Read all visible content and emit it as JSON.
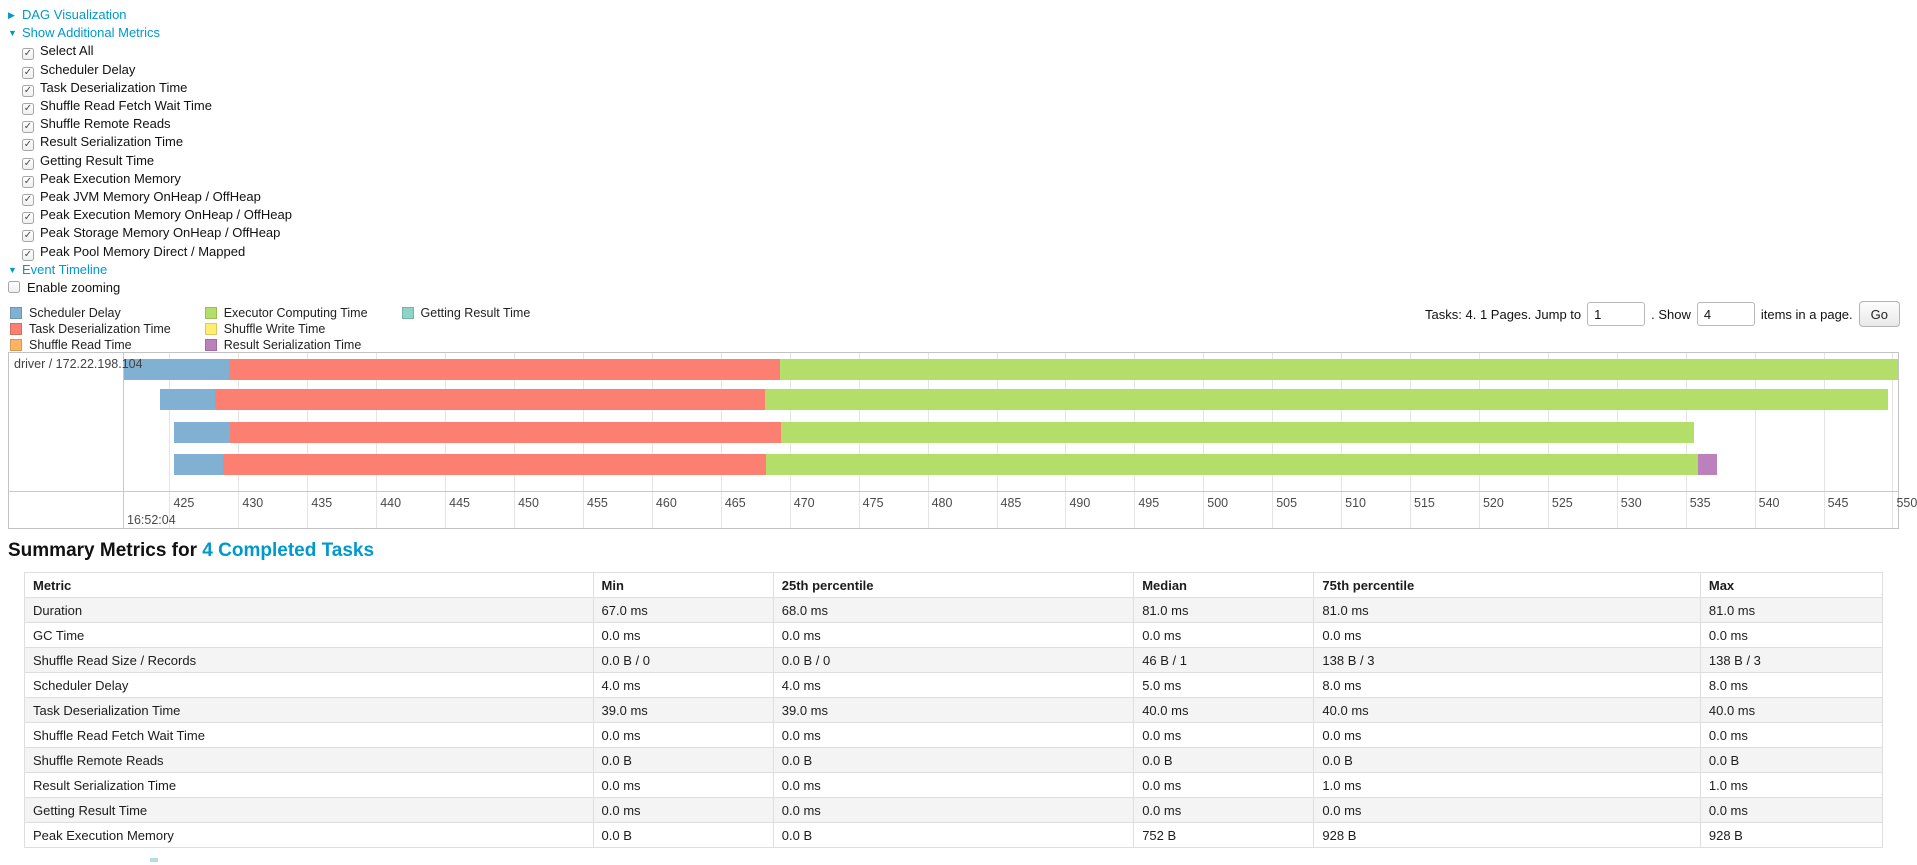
{
  "colors": {
    "link": "#0099cc",
    "scheduler_delay": "#80B1D3",
    "task_deserialization": "#FB8072",
    "shuffle_read": "#FDB462",
    "executor_computing": "#B3DE69",
    "shuffle_write": "#FFED6F",
    "result_serialization": "#BC80BD",
    "getting_result": "#8DD3C7"
  },
  "controls": {
    "dag": {
      "arrow": "▶",
      "label": "DAG Visualization"
    },
    "metrics": {
      "arrow": "▼",
      "label": "Show Additional Metrics"
    },
    "checkboxes": [
      "Select All",
      "Scheduler Delay",
      "Task Deserialization Time",
      "Shuffle Read Fetch Wait Time",
      "Shuffle Remote Reads",
      "Result Serialization Time",
      "Getting Result Time",
      "Peak Execution Memory",
      "Peak JVM Memory OnHeap / OffHeap",
      "Peak Execution Memory OnHeap / OffHeap",
      "Peak Storage Memory OnHeap / OffHeap",
      "Peak Pool Memory Direct / Mapped"
    ],
    "event_timeline": {
      "arrow": "▼",
      "label": "Event Timeline"
    },
    "enable_zooming": "Enable zooming"
  },
  "legend": {
    "columns": [
      [
        {
          "label": "Scheduler Delay",
          "color": "#80B1D3"
        },
        {
          "label": "Task Deserialization Time",
          "color": "#FB8072"
        },
        {
          "label": "Shuffle Read Time",
          "color": "#FDB462"
        }
      ],
      [
        {
          "label": "Executor Computing Time",
          "color": "#B3DE69"
        },
        {
          "label": "Shuffle Write Time",
          "color": "#FFED6F"
        },
        {
          "label": "Result Serialization Time",
          "color": "#BC80BD"
        }
      ],
      [
        {
          "label": "Getting Result Time",
          "color": "#8DD3C7"
        }
      ]
    ]
  },
  "pagination": {
    "prefix": "Tasks: 4. 1 Pages. Jump to",
    "jump_value": "1",
    "mid": ". Show",
    "show_value": "4",
    "suffix": "items in a page.",
    "go": "Go"
  },
  "chart_data": {
    "type": "timeline",
    "row_label": "driver / 172.22.198.104",
    "x_domain": [
      421.7,
      550.4
    ],
    "x_unit": "milliseconds within second",
    "ticks": [
      425,
      430,
      435,
      440,
      445,
      450,
      455,
      460,
      465,
      470,
      475,
      480,
      485,
      490,
      495,
      500,
      505,
      510,
      515,
      520,
      525,
      530,
      535,
      540,
      545,
      550
    ],
    "major_label": "16:52:04",
    "tasks": [
      {
        "segments": [
          {
            "name": "scheduler-delay",
            "start": 421.7,
            "end": 429.3,
            "color": "#80B1D3"
          },
          {
            "name": "task-deserialization",
            "start": 429.3,
            "end": 469.3,
            "color": "#FB8072"
          },
          {
            "name": "executor-computing",
            "start": 469.3,
            "end": 550.5,
            "color": "#B3DE69"
          }
        ]
      },
      {
        "segments": [
          {
            "name": "scheduler-delay",
            "start": 424.3,
            "end": 428.3,
            "color": "#80B1D3"
          },
          {
            "name": "task-deserialization",
            "start": 428.3,
            "end": 468.2,
            "color": "#FB8072"
          },
          {
            "name": "executor-computing",
            "start": 468.2,
            "end": 549.7,
            "color": "#B3DE69"
          }
        ]
      },
      {
        "segments": [
          {
            "name": "scheduler-delay",
            "start": 425.3,
            "end": 429.4,
            "color": "#80B1D3"
          },
          {
            "name": "task-deserialization",
            "start": 429.4,
            "end": 469.4,
            "color": "#FB8072"
          },
          {
            "name": "executor-computing",
            "start": 469.4,
            "end": 535.6,
            "color": "#B3DE69"
          }
        ]
      },
      {
        "segments": [
          {
            "name": "scheduler-delay",
            "start": 425.3,
            "end": 428.9,
            "color": "#80B1D3"
          },
          {
            "name": "task-deserialization",
            "start": 428.9,
            "end": 468.3,
            "color": "#FB8072"
          },
          {
            "name": "executor-computing",
            "start": 468.3,
            "end": 535.9,
            "color": "#B3DE69"
          },
          {
            "name": "result-serialization",
            "start": 535.9,
            "end": 537.3,
            "color": "#BC80BD"
          }
        ]
      }
    ]
  },
  "summary": {
    "title_prefix": "Summary Metrics for",
    "title_link": "4 Completed Tasks",
    "table": {
      "headers": [
        "Metric",
        "Min",
        "25th percentile",
        "Median",
        "75th percentile",
        "Max"
      ],
      "col_widths_pct": [
        30.6,
        9.7,
        19.4,
        9.7,
        20.8,
        9.8
      ],
      "rows": [
        [
          "Duration",
          "67.0 ms",
          "68.0 ms",
          "81.0 ms",
          "81.0 ms",
          "81.0 ms"
        ],
        [
          "GC Time",
          "0.0 ms",
          "0.0 ms",
          "0.0 ms",
          "0.0 ms",
          "0.0 ms"
        ],
        [
          "Shuffle Read Size / Records",
          "0.0 B / 0",
          "0.0 B / 0",
          "46 B / 1",
          "138 B / 3",
          "138 B / 3"
        ],
        [
          "Scheduler Delay",
          "4.0 ms",
          "4.0 ms",
          "5.0 ms",
          "8.0 ms",
          "8.0 ms"
        ],
        [
          "Task Deserialization Time",
          "39.0 ms",
          "39.0 ms",
          "40.0 ms",
          "40.0 ms",
          "40.0 ms"
        ],
        [
          "Shuffle Read Fetch Wait Time",
          "0.0 ms",
          "0.0 ms",
          "0.0 ms",
          "0.0 ms",
          "0.0 ms"
        ],
        [
          "Shuffle Remote Reads",
          "0.0 B",
          "0.0 B",
          "0.0 B",
          "0.0 B",
          "0.0 B"
        ],
        [
          "Result Serialization Time",
          "0.0 ms",
          "0.0 ms",
          "0.0 ms",
          "1.0 ms",
          "1.0 ms"
        ],
        [
          "Getting Result Time",
          "0.0 ms",
          "0.0 ms",
          "0.0 ms",
          "0.0 ms",
          "0.0 ms"
        ],
        [
          "Peak Execution Memory",
          "0.0 B",
          "0.0 B",
          "752 B",
          "928 B",
          "928 B"
        ]
      ]
    }
  }
}
